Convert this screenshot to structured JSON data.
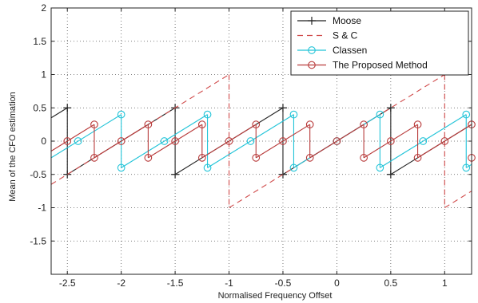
{
  "chart_data": {
    "type": "line",
    "title": "",
    "xlabel": "Normalised Frequency Offset",
    "ylabel": "Mean of the CFO estimation",
    "xlim": [
      -2.65,
      1.25
    ],
    "ylim": [
      -2,
      2
    ],
    "grid": true,
    "grid_style": "dotted",
    "legend_position": "top-right",
    "x_ticks": [
      -2.5,
      -2,
      -1.5,
      -1,
      -0.5,
      0,
      0.5,
      1
    ],
    "x_tick_labels": [
      "-2.5",
      "-2",
      "-1.5",
      "-1",
      "-0.5",
      "0",
      "0.5",
      "1"
    ],
    "y_ticks": [
      -1.5,
      -1,
      -0.5,
      0,
      0.5,
      1,
      1.5,
      2
    ],
    "y_tick_labels": [
      "-1.5",
      "-1",
      "-0.5",
      "0",
      "0.5",
      "1",
      "1.5",
      "2"
    ],
    "series": [
      {
        "name": "Moose",
        "color": "#222222",
        "style": "sawtooth",
        "period": 1,
        "amplitude": 0.5,
        "offset": 0,
        "marker": "plus",
        "marker_x": [
          -2.5,
          -1.5,
          -0.5,
          0.5
        ]
      },
      {
        "name": "S & C",
        "color": "#d04a4a",
        "style": "sawtooth",
        "period": 2,
        "amplitude": 1,
        "offset": 0,
        "dash": "7,5"
      },
      {
        "name": "Classen",
        "color": "#22c4d8",
        "style": "sawtooth",
        "period": 0.8,
        "amplitude": 0.4,
        "offset": 0,
        "marker": "circle",
        "marker_x": [
          -2.4,
          -2.0,
          -1.6,
          -1.2,
          -0.8,
          -0.4,
          0.0,
          0.4,
          0.8,
          1.2
        ]
      },
      {
        "name": "The Proposed Method",
        "color": "#b83a3a",
        "style": "sawtooth",
        "period": 0.5,
        "amplitude": 0.25,
        "offset": 0,
        "marker": "circle",
        "marker_x": [
          -2.5,
          -2.25,
          -2.0,
          -1.75,
          -1.5,
          -1.25,
          -1.0,
          -0.75,
          -0.5,
          -0.25,
          0.0,
          0.25,
          0.5,
          0.75,
          1.0,
          1.25
        ]
      }
    ]
  }
}
